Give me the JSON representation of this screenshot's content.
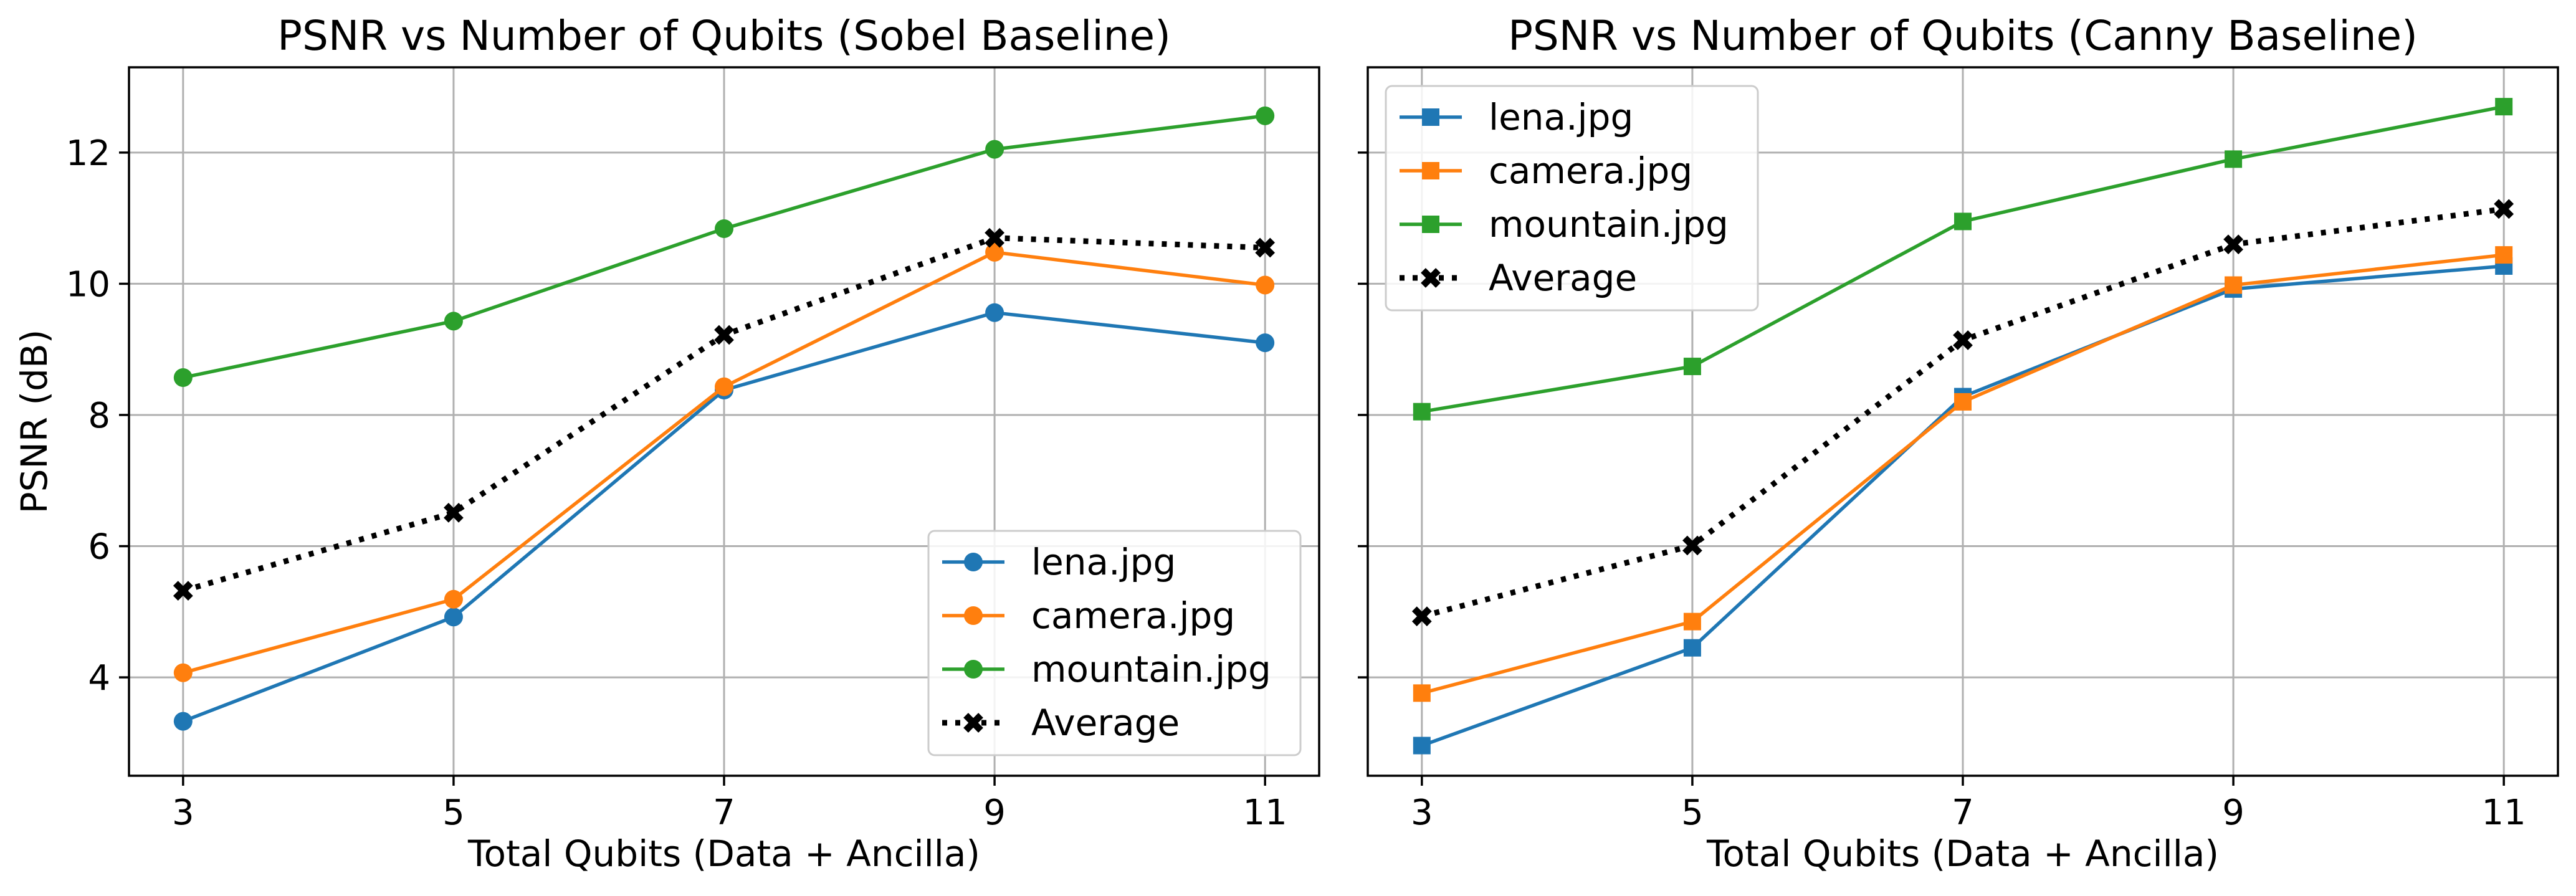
{
  "chart_data": [
    {
      "type": "line",
      "title": "PSNR vs Number of Qubits (Sobel Baseline)",
      "xlabel": "Total Qubits (Data + Ancilla)",
      "ylabel": "PSNR (dB)",
      "x": [
        3,
        5,
        7,
        9,
        11
      ],
      "xticks": [
        "3",
        "5",
        "7",
        "9",
        "11"
      ],
      "yticks": [
        "4",
        "6",
        "8",
        "10",
        "12"
      ],
      "xlim": [
        2.6,
        11.4
      ],
      "ylim": [
        2.5,
        13.3
      ],
      "grid": true,
      "legend_position": "lower-right",
      "series": [
        {
          "name": "lena.jpg",
          "values": [
            3.33,
            4.92,
            8.38,
            9.56,
            9.1
          ],
          "color": "#1f77b4",
          "marker": "circle",
          "line": "solid"
        },
        {
          "name": "camera.jpg",
          "values": [
            4.07,
            5.19,
            8.43,
            10.48,
            9.98
          ],
          "color": "#ff7f0e",
          "marker": "circle",
          "line": "solid"
        },
        {
          "name": "mountain.jpg",
          "values": [
            8.57,
            9.43,
            10.84,
            12.05,
            12.56
          ],
          "color": "#2ca02c",
          "marker": "circle",
          "line": "solid"
        },
        {
          "name": "Average",
          "values": [
            5.32,
            6.51,
            9.22,
            10.7,
            10.55
          ],
          "color": "#000000",
          "marker": "x",
          "line": "dotted"
        }
      ]
    },
    {
      "type": "line",
      "title": "PSNR vs Number of Qubits (Canny Baseline)",
      "xlabel": "Total Qubits (Data + Ancilla)",
      "ylabel": "",
      "x": [
        3,
        5,
        7,
        9,
        11
      ],
      "xticks": [
        "3",
        "5",
        "7",
        "9",
        "11"
      ],
      "yticks": [],
      "xlim": [
        2.6,
        11.4
      ],
      "ylim": [
        2.5,
        13.3
      ],
      "grid": true,
      "legend_position": "upper-left",
      "series": [
        {
          "name": "lena.jpg",
          "values": [
            2.96,
            4.45,
            8.28,
            9.92,
            10.27
          ],
          "color": "#1f77b4",
          "marker": "square",
          "line": "solid"
        },
        {
          "name": "camera.jpg",
          "values": [
            3.76,
            4.85,
            8.2,
            9.98,
            10.44
          ],
          "color": "#ff7f0e",
          "marker": "square",
          "line": "solid"
        },
        {
          "name": "mountain.jpg",
          "values": [
            8.05,
            8.74,
            10.95,
            11.9,
            12.7
          ],
          "color": "#2ca02c",
          "marker": "square",
          "line": "solid"
        },
        {
          "name": "Average",
          "values": [
            4.93,
            6.01,
            9.14,
            10.6,
            11.14
          ],
          "color": "#000000",
          "marker": "x",
          "line": "dotted"
        }
      ]
    }
  ]
}
